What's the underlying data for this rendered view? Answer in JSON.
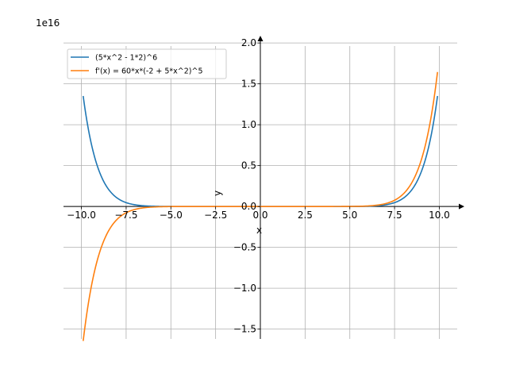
{
  "chart_data": {
    "type": "line",
    "title": "",
    "xlabel": "x",
    "ylabel": "y",
    "scale_label": "1e16",
    "xlim": [
      -11,
      11
    ],
    "ylim": [
      -1.62,
      2.05
    ],
    "xticks": [
      -10,
      -7.5,
      -5,
      -2.5,
      0,
      2.5,
      5,
      7.5,
      10
    ],
    "xtick_labels": [
      "−10.0",
      "−7.5",
      "−5.0",
      "−2.5",
      "0.0",
      "2.5",
      "5.0",
      "7.5",
      "10.0"
    ],
    "yticks": [
      -1.5,
      -1.0,
      -0.5,
      0.0,
      0.5,
      1.0,
      1.5,
      2.0
    ],
    "ytick_labels": [
      "−1.5",
      "−1.0",
      "−0.5",
      "0.0",
      "0.5",
      "1.0",
      "1.5",
      "2.0"
    ],
    "grid": true,
    "legend_position": "upper-left",
    "x_range": [
      -9.9,
      9.9
    ],
    "series": [
      {
        "name": "(5*x^2 - 1*2)^6",
        "color": "#1f77b4",
        "function": "(5*x^2 - 2)^6 / 1e16"
      },
      {
        "name": "f'(x) = 60*x*(-2 + 5*x^2)^5",
        "color": "#ff7f0e",
        "function": "60*x*(5*x^2 - 2)^5 / 1e16"
      }
    ]
  }
}
